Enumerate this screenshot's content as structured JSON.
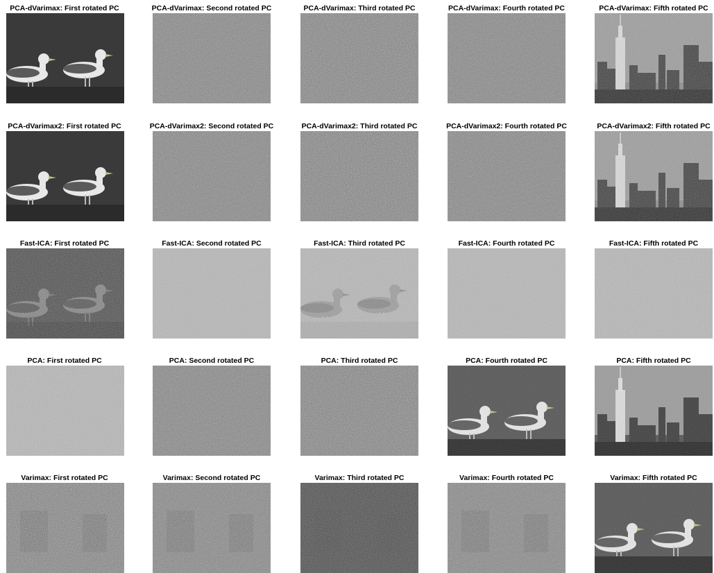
{
  "figure": {
    "rows": [
      {
        "method": "PCA-dVarimax",
        "panels": [
          {
            "title": "PCA-dVarimax: First rotated PC",
            "content": "seagulls",
            "tone": "clean"
          },
          {
            "title": "PCA-dVarimax: Second rotated PC",
            "content": "noise",
            "tone": "mid"
          },
          {
            "title": "PCA-dVarimax: Third rotated PC",
            "content": "noise",
            "tone": "mid"
          },
          {
            "title": "PCA-dVarimax: Fourth rotated PC",
            "content": "noise",
            "tone": "mid"
          },
          {
            "title": "PCA-dVarimax: Fifth rotated PC",
            "content": "city",
            "tone": "noisy"
          }
        ]
      },
      {
        "method": "PCA-dVarimax2",
        "panels": [
          {
            "title": "PCA-dVarimax2: First rotated PC",
            "content": "seagulls",
            "tone": "clean"
          },
          {
            "title": "PCA-dVarimax2: Second rotated PC",
            "content": "noise",
            "tone": "mid"
          },
          {
            "title": "PCA-dVarimax2: Third rotated PC",
            "content": "noise",
            "tone": "mid"
          },
          {
            "title": "PCA-dVarimax2: Fourth rotated PC",
            "content": "noise",
            "tone": "mid"
          },
          {
            "title": "PCA-dVarimax2: Fifth rotated PC",
            "content": "city",
            "tone": "noisy"
          }
        ]
      },
      {
        "method": "Fast-ICA",
        "panels": [
          {
            "title": "Fast-ICA: First rotated PC",
            "content": "seagulls-faint",
            "tone": "dark"
          },
          {
            "title": "Fast-ICA: Second rotated PC",
            "content": "noise",
            "tone": "light"
          },
          {
            "title": "Fast-ICA: Third rotated PC",
            "content": "seagulls-negative",
            "tone": "light"
          },
          {
            "title": "Fast-ICA: Fourth rotated PC",
            "content": "noise",
            "tone": "light"
          },
          {
            "title": "Fast-ICA: Fifth rotated PC",
            "content": "noise",
            "tone": "light"
          }
        ]
      },
      {
        "method": "PCA",
        "panels": [
          {
            "title": "PCA: First rotated PC",
            "content": "noise",
            "tone": "light"
          },
          {
            "title": "PCA: Second rotated PC",
            "content": "noise",
            "tone": "mid"
          },
          {
            "title": "PCA: Third rotated PC",
            "content": "noise",
            "tone": "mid"
          },
          {
            "title": "PCA: Fourth rotated PC",
            "content": "seagulls",
            "tone": "mixed"
          },
          {
            "title": "PCA: Fifth rotated PC",
            "content": "city",
            "tone": "mixed"
          }
        ]
      },
      {
        "method": "Varimax",
        "panels": [
          {
            "title": "Varimax: First rotated PC",
            "content": "noise-ghost",
            "tone": "mid"
          },
          {
            "title": "Varimax: Second rotated PC",
            "content": "noise-ghost",
            "tone": "mid"
          },
          {
            "title": "Varimax: Third rotated PC",
            "content": "noise-ghost",
            "tone": "dark"
          },
          {
            "title": "Varimax: Fourth rotated PC",
            "content": "noise-ghost",
            "tone": "mid"
          },
          {
            "title": "Varimax: Fifth rotated PC",
            "content": "seagulls",
            "tone": "mixed"
          }
        ]
      }
    ]
  }
}
